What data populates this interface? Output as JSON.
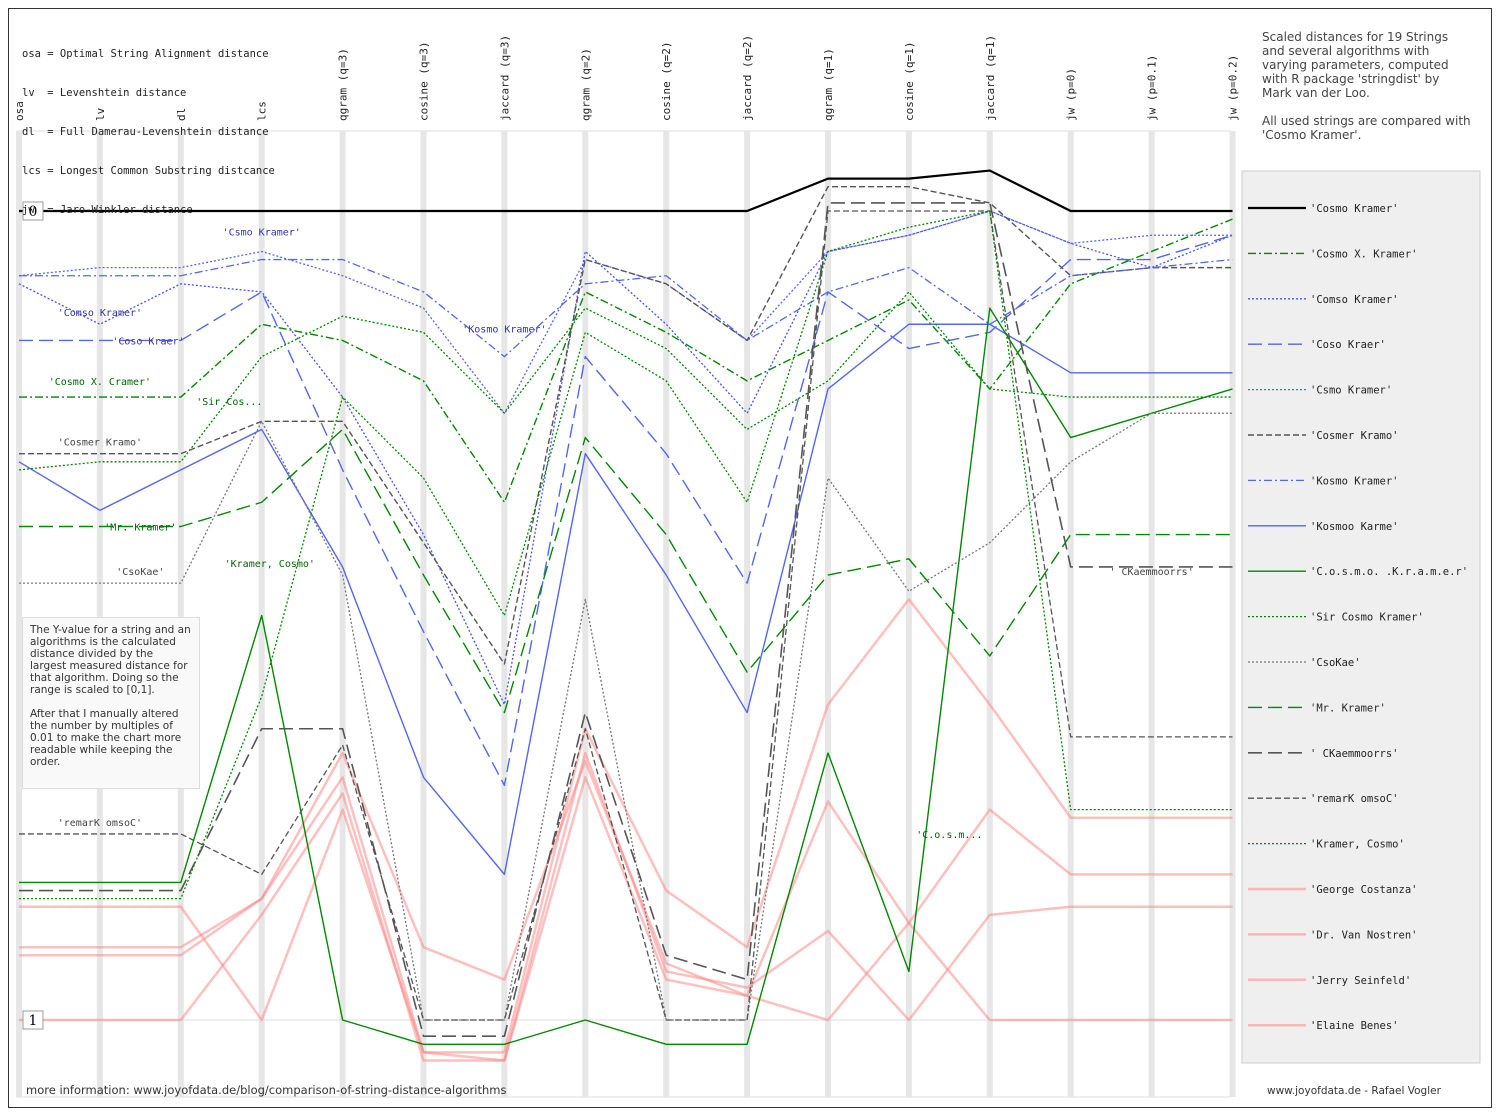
{
  "abbreviations": [
    "osa = Optimal String Alignment distance",
    "lv  = Levenshtein distance",
    "dl  = Full Damerau-Levenshtein distance",
    "lcs = Longest Common Substring distcance",
    "jw  = Jaro-Winkler distance"
  ],
  "description": [
    "Scaled distances for 19 Strings and several algorithms with varying parameters, computed with R package 'stringdist' by Mark van der Loo.",
    "All used strings are compared with 'Cosmo Kramer'."
  ],
  "note": [
    "The Y-value for a string and an algorithms is the calculated distance divided by the largest measured distance for that algorithm. Doing so the range is scaled to [0,1].",
    "After that I manually altered the number by multiples of 0.01 to make the chart more readable while keeping the order."
  ],
  "footer_left": "more information: www.joyofdata.de/blog/comparison-of-string-distance-algorithms",
  "footer_right": "www.joyofdata.de - Rafael Vogler",
  "chart_data": {
    "type": "line",
    "x": [
      "osa",
      "lv",
      "dl",
      "lcs",
      "qgram (q=3)",
      "cosine (q=3)",
      "jaccard (q=3)",
      "qgram (q=2)",
      "cosine (q=2)",
      "jaccard (q=2)",
      "qgram (q=1)",
      "cosine (q=1)",
      "jaccard (q=1)",
      "jw (p=0)",
      "jw (p=0.1)",
      "jw (p=0.2)"
    ],
    "ylim": [
      0,
      1
    ],
    "y_tick_labels": [
      "0",
      "1"
    ],
    "series": [
      {
        "name": "'Cosmo Kramer'",
        "color": "#000000",
        "dash": "solid",
        "width": 2.2,
        "opacity": 1,
        "values": [
          0.0,
          0.0,
          0.0,
          0.0,
          0.0,
          0.0,
          0.0,
          0.0,
          0.0,
          0.0,
          -0.04,
          -0.04,
          -0.05,
          0.0,
          0.0,
          0.0
        ]
      },
      {
        "name": "'Cosmo X. Kramer'",
        "color": "#008800",
        "dash": "dashdot",
        "width": 1.4,
        "opacity": 1,
        "values": [
          0.23,
          0.23,
          0.23,
          0.14,
          0.16,
          0.21,
          0.36,
          0.1,
          0.15,
          0.21,
          0.16,
          0.11,
          0.22,
          0.09,
          0.05,
          0.01
        ]
      },
      {
        "name": "'Comso Kramer'",
        "color": "#4455ee",
        "dash": "dotted",
        "width": 1.3,
        "opacity": 1,
        "values": [
          0.09,
          0.14,
          0.09,
          0.1,
          0.23,
          0.4,
          0.61,
          0.05,
          0.14,
          0.25,
          0.05,
          0.03,
          0.0,
          0.04,
          0.07,
          0.03
        ]
      },
      {
        "name": "'Coso Kraer'",
        "color": "#5566ee",
        "dash": "longdash",
        "width": 1.4,
        "opacity": 1,
        "values": [
          0.16,
          0.16,
          0.16,
          0.1,
          0.32,
          0.52,
          0.71,
          0.18,
          0.3,
          0.46,
          0.1,
          0.17,
          0.15,
          0.06,
          0.06,
          0.03
        ]
      },
      {
        "name": "'Csmo Kramer'",
        "color": "#5566ee",
        "dash": "dotted",
        "width": 1.3,
        "opacity": 1,
        "values": [
          0.08,
          0.07,
          0.07,
          0.05,
          0.08,
          0.12,
          0.25,
          0.06,
          0.09,
          0.16,
          0.05,
          0.03,
          0.0,
          0.04,
          0.03,
          0.03
        ]
      },
      {
        "name": "'Cosmer Kramo'",
        "color": "#555555",
        "dash": "dashed",
        "width": 1.4,
        "opacity": 1,
        "values": [
          0.3,
          0.3,
          0.3,
          0.26,
          0.26,
          0.41,
          0.56,
          0.06,
          0.09,
          0.16,
          -0.03,
          -0.03,
          -0.01,
          0.08,
          0.07,
          0.07
        ]
      },
      {
        "name": "'Kosmo Kramer'",
        "color": "#5566ee",
        "dash": "dashdot",
        "width": 1.3,
        "opacity": 1,
        "values": [
          0.08,
          0.08,
          0.08,
          0.06,
          0.06,
          0.1,
          0.18,
          0.09,
          0.08,
          0.16,
          0.1,
          0.07,
          0.14,
          0.08,
          0.07,
          0.06
        ]
      },
      {
        "name": "'Kosmoo Karme'",
        "color": "#5566ee",
        "dash": "solid",
        "width": 1.4,
        "opacity": 1,
        "values": [
          0.31,
          0.37,
          0.32,
          0.27,
          0.44,
          0.7,
          0.82,
          0.3,
          0.45,
          0.62,
          0.22,
          0.14,
          0.14,
          0.2,
          0.2,
          0.2
        ]
      },
      {
        "name": "'C.o.s.m.o. .K.r.a.m.e.r'",
        "color": "#008800",
        "dash": "solid",
        "width": 1.4,
        "opacity": 1,
        "values": [
          0.83,
          0.83,
          0.83,
          0.5,
          1.0,
          1.03,
          1.03,
          1.0,
          1.03,
          1.03,
          0.67,
          0.94,
          0.12,
          0.28,
          0.25,
          0.22
        ]
      },
      {
        "name": "'Sir Cosmo Kramer'",
        "color": "#008800",
        "dash": "dotted",
        "width": 1.3,
        "opacity": 1,
        "values": [
          0.32,
          0.31,
          0.31,
          0.18,
          0.13,
          0.15,
          0.25,
          0.12,
          0.17,
          0.27,
          0.21,
          0.1,
          0.22,
          0.23,
          0.23,
          0.23
        ]
      },
      {
        "name": "'CsoKae'",
        "color": "#777777",
        "dash": "dotted",
        "width": 1.3,
        "opacity": 1,
        "values": [
          0.46,
          0.46,
          0.46,
          0.26,
          0.45,
          1.0,
          1.0,
          0.48,
          1.0,
          1.0,
          0.33,
          0.47,
          0.41,
          0.31,
          0.25,
          0.25
        ]
      },
      {
        "name": "'Mr. Kramer'",
        "color": "#008800",
        "dash": "longdash",
        "width": 1.4,
        "opacity": 1,
        "values": [
          0.39,
          0.39,
          0.39,
          0.36,
          0.27,
          0.45,
          0.62,
          0.28,
          0.4,
          0.57,
          0.45,
          0.43,
          0.55,
          0.4,
          0.4,
          0.4
        ]
      },
      {
        "name": "' CKaemmoorrs'",
        "color": "#555555",
        "dash": "longdash",
        "width": 1.6,
        "opacity": 1,
        "values": [
          0.84,
          0.84,
          0.84,
          0.64,
          0.64,
          1.02,
          1.02,
          0.62,
          0.92,
          0.95,
          -0.01,
          -0.01,
          -0.01,
          0.44,
          0.44,
          0.44
        ]
      },
      {
        "name": "'remarK omsoC'",
        "color": "#555555",
        "dash": "dashed",
        "width": 1.3,
        "opacity": 1,
        "values": [
          0.77,
          0.77,
          0.77,
          0.82,
          0.66,
          1.0,
          1.0,
          0.64,
          1.0,
          1.0,
          0.0,
          0.0,
          0.0,
          0.65,
          0.65,
          0.65
        ]
      },
      {
        "name": "'Kramer, Cosmo'",
        "color": "#008800",
        "dash": "dotted",
        "width": 1.3,
        "opacity": 1,
        "values": [
          0.85,
          0.85,
          0.85,
          0.6,
          0.23,
          0.33,
          0.5,
          0.15,
          0.21,
          0.36,
          0.05,
          0.02,
          0.0,
          0.74,
          0.74,
          0.74
        ]
      },
      {
        "name": "'George Costanza'",
        "color": "#ff8080",
        "dash": "solid",
        "width": 2.5,
        "opacity": 0.5,
        "values": [
          0.86,
          0.86,
          0.86,
          1.0,
          0.74,
          1.04,
          1.04,
          0.64,
          0.84,
          0.91,
          0.61,
          0.48,
          0.61,
          0.75,
          0.75,
          0.75
        ]
      },
      {
        "name": "'Dr. Van Nostren'",
        "color": "#ff8080",
        "dash": "solid",
        "width": 2.5,
        "opacity": 0.5,
        "values": [
          0.91,
          0.91,
          0.91,
          0.85,
          0.67,
          0.91,
          0.95,
          0.68,
          0.93,
          0.97,
          0.73,
          0.88,
          0.74,
          0.82,
          0.82,
          0.82
        ]
      },
      {
        "name": "'Jerry Seinfeld'",
        "color": "#ff8080",
        "dash": "solid",
        "width": 2.5,
        "opacity": 0.5,
        "values": [
          0.92,
          0.92,
          0.92,
          0.85,
          0.7,
          1.04,
          1.05,
          0.67,
          0.94,
          0.96,
          0.89,
          1.0,
          0.87,
          0.86,
          0.86,
          0.86
        ]
      },
      {
        "name": "'Elaine Benes'",
        "color": "#ff8080",
        "dash": "solid",
        "width": 2.5,
        "opacity": 0.5,
        "values": [
          1.0,
          1.0,
          1.0,
          0.87,
          0.72,
          1.05,
          1.05,
          0.7,
          0.95,
          0.97,
          1.0,
          0.88,
          1.0,
          1.0,
          1.0,
          1.0
        ]
      }
    ],
    "annotations": [
      {
        "text": "'Csmo Kramer'",
        "axis": 3,
        "y": 0.03,
        "color": "#3333aa"
      },
      {
        "text": "'Comso Kramer'",
        "axis": 1,
        "y": 0.13,
        "color": "#3333aa"
      },
      {
        "text": "'Coso Kraer'",
        "axis": 1.6,
        "y": 0.165,
        "color": "#3333aa"
      },
      {
        "text": "'Kosmo Kramer'",
        "axis": 6,
        "y": 0.15,
        "color": "#3333aa"
      },
      {
        "text": "'Cosmo X. Cramer'",
        "axis": 1,
        "y": 0.215,
        "color": "#006600"
      },
      {
        "text": "'Sir Cos...",
        "axis": 2.6,
        "y": 0.24,
        "color": "#006600"
      },
      {
        "text": "'Cosmer Kramo'",
        "axis": 1,
        "y": 0.29,
        "color": "#444444"
      },
      {
        "text": "'Mr. Kramer'",
        "axis": 1.5,
        "y": 0.395,
        "color": "#006600"
      },
      {
        "text": "'CsoKae'",
        "axis": 1.5,
        "y": 0.45,
        "color": "#444444"
      },
      {
        "text": "'Kramer, Cosmo'",
        "axis": 3.1,
        "y": 0.44,
        "color": "#006600"
      },
      {
        "text": "'remarK omsoC'",
        "axis": 1,
        "y": 0.76,
        "color": "#444444"
      },
      {
        "text": "'C.o.s.m...",
        "axis": 11.5,
        "y": 0.775,
        "color": "#006600"
      },
      {
        "text": "' CKaemmoorrs'",
        "axis": 14,
        "y": 0.45,
        "color": "#444444"
      }
    ]
  }
}
